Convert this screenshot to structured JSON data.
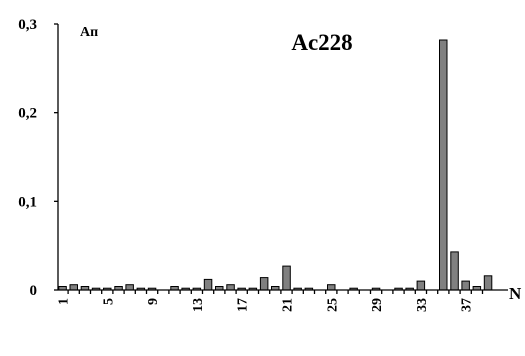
{
  "chart_data": {
    "type": "bar",
    "title": "Ac228",
    "ylabel": "Aп",
    "xlabel": "N",
    "ylim": [
      0,
      0.3
    ],
    "yticks": [
      "0",
      "0,1",
      "0,2",
      "0,3"
    ],
    "xtick_labels": [
      "1",
      "5",
      "9",
      "13",
      "17",
      "21",
      "25",
      "29",
      "33",
      "37"
    ],
    "categories": [
      1,
      2,
      3,
      4,
      5,
      6,
      7,
      8,
      9,
      10,
      11,
      12,
      13,
      14,
      15,
      16,
      17,
      18,
      19,
      20,
      21,
      22,
      23,
      24,
      25,
      26,
      27,
      28,
      29,
      30,
      31,
      32,
      33,
      34,
      35,
      36,
      37,
      38,
      39
    ],
    "values": [
      0.004,
      0.006,
      0.004,
      0.002,
      0.002,
      0.004,
      0.006,
      0.002,
      0.002,
      0.0,
      0.004,
      0.002,
      0.002,
      0.012,
      0.004,
      0.006,
      0.002,
      0.002,
      0.014,
      0.004,
      0.027,
      0.002,
      0.002,
      0.0,
      0.006,
      0.0,
      0.002,
      0.0,
      0.002,
      0.0,
      0.002,
      0.002,
      0.01,
      0.0,
      0.282,
      0.043,
      0.01,
      0.004,
      0.016
    ],
    "bar_color": "#808080",
    "grid": false,
    "legend": "none"
  }
}
